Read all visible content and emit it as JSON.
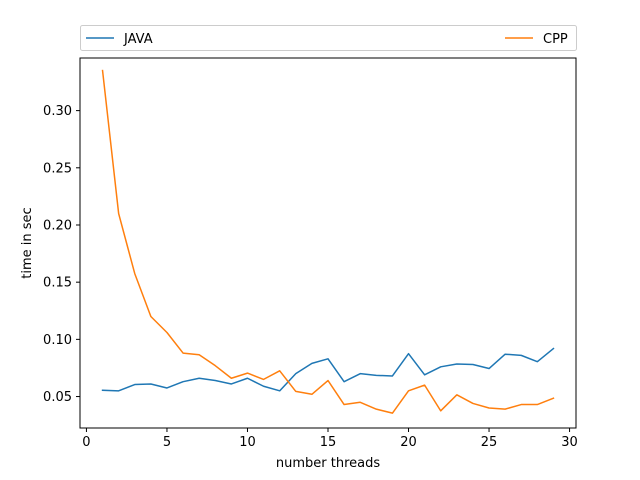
{
  "chart_data": {
    "type": "line",
    "xlabel": "number threads",
    "ylabel": "time in sec",
    "xlim": [
      -0.4,
      30.4
    ],
    "ylim": [
      0.0225,
      0.346
    ],
    "xticks": [
      0,
      5,
      10,
      15,
      20,
      25,
      30
    ],
    "yticks": [
      0.05,
      0.1,
      0.15,
      0.2,
      0.25,
      0.3
    ],
    "ytick_labels": [
      "0.05",
      "0.10",
      "0.15",
      "0.20",
      "0.25",
      "0.30"
    ],
    "grid": false,
    "legend_placement": "above plot, expanded across width",
    "x": [
      1,
      2,
      3,
      4,
      5,
      6,
      7,
      8,
      9,
      10,
      11,
      12,
      13,
      14,
      15,
      16,
      17,
      18,
      19,
      20,
      21,
      22,
      23,
      24,
      25,
      26,
      27,
      28,
      29
    ],
    "series": [
      {
        "name": "JAVA",
        "color": "#1f77b4",
        "values": [
          0.0555,
          0.055,
          0.0605,
          0.061,
          0.0575,
          0.063,
          0.066,
          0.064,
          0.061,
          0.066,
          0.059,
          0.055,
          0.07,
          0.079,
          0.083,
          0.063,
          0.07,
          0.0685,
          0.068,
          0.0875,
          0.069,
          0.076,
          0.0785,
          0.078,
          0.0745,
          0.087,
          0.086,
          0.0805,
          0.092
        ]
      },
      {
        "name": "CPP",
        "color": "#ff7f0e",
        "values": [
          0.335,
          0.21,
          0.1575,
          0.12,
          0.106,
          0.088,
          0.0865,
          0.077,
          0.066,
          0.0705,
          0.065,
          0.0725,
          0.0545,
          0.052,
          0.064,
          0.043,
          0.045,
          0.039,
          0.0355,
          0.055,
          0.06,
          0.0375,
          0.0515,
          0.044,
          0.04,
          0.039,
          0.043,
          0.043,
          0.0485
        ]
      }
    ]
  }
}
